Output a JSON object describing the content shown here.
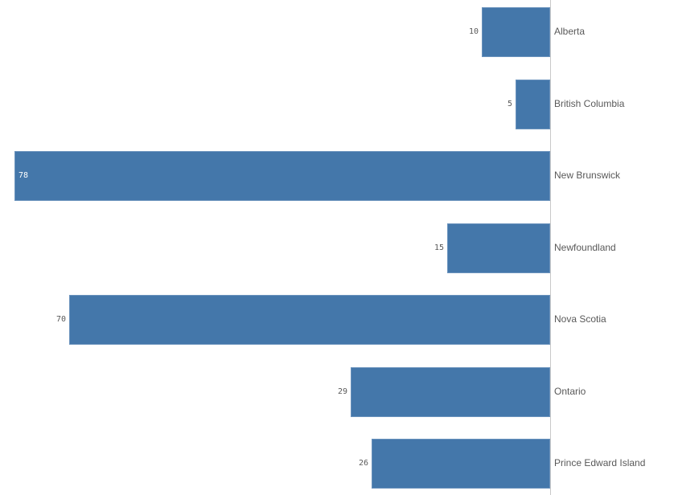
{
  "chart_data": {
    "type": "bar",
    "orientation": "horizontal",
    "direction": "right-to-left",
    "categories": [
      "Alberta",
      "British Columbia",
      "New Brunswick",
      "Newfoundland",
      "Nova Scotia",
      "Ontario",
      "Prince Edward Island"
    ],
    "values": [
      10,
      5,
      78,
      15,
      70,
      29,
      26
    ],
    "value_labels": [
      "10",
      "5",
      "78",
      "15",
      "70",
      "29",
      "26"
    ],
    "title": "",
    "xlabel": "",
    "ylabel": "",
    "xlim": [
      0,
      78
    ],
    "grid": false,
    "legend": "none",
    "bar_color": "#4477aa"
  },
  "layout": {
    "axis_x": 684,
    "max_width": 666,
    "row_tops": [
      9,
      99,
      188,
      278,
      367,
      457,
      546
    ]
  }
}
